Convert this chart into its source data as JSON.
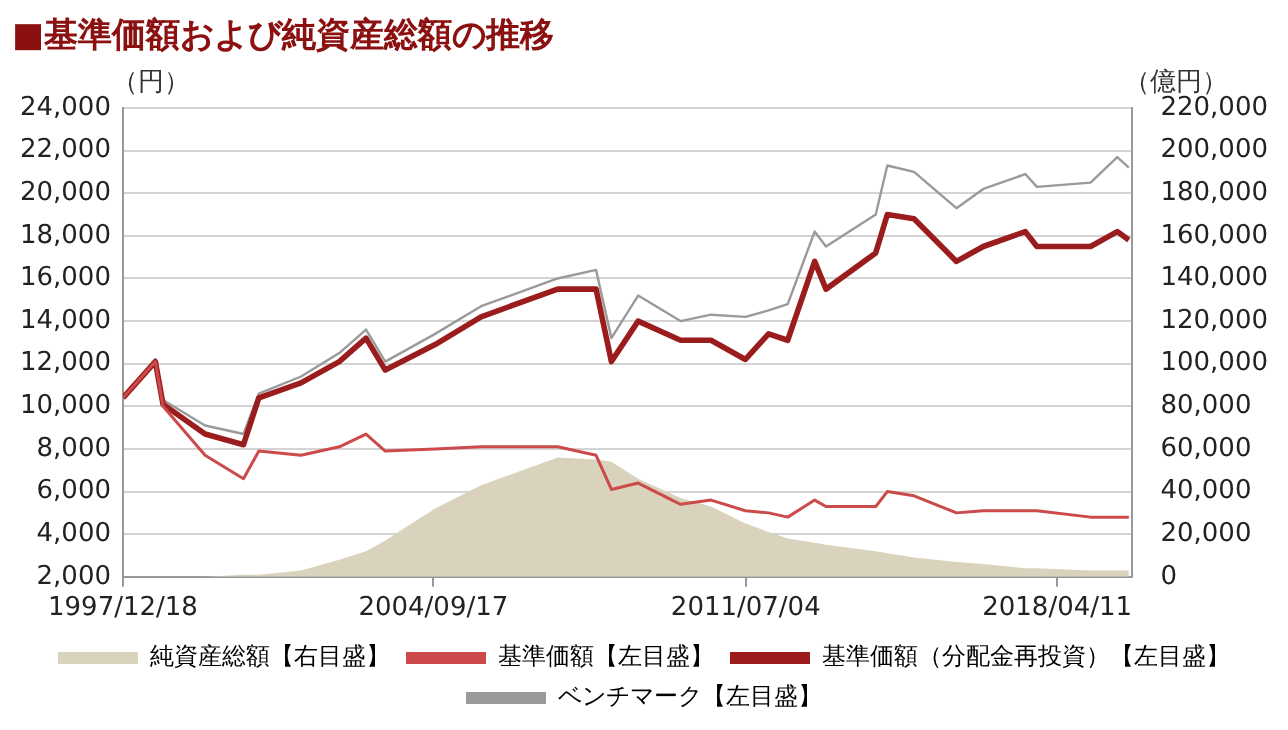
{
  "chart_data": {
    "type": "line",
    "title": "■基準価額および純資産総額の推移",
    "ylabel": "（円）",
    "y2label": "（億円）",
    "x": [
      "1997-12-18",
      "1998-09",
      "1998-11",
      "1999-10",
      "2000-08",
      "2000-12",
      "2001-11",
      "2002-09",
      "2003-04",
      "2003-09",
      "2004-10",
      "2005-10",
      "2007-06",
      "2008-04",
      "2008-08",
      "2009-03",
      "2010-02",
      "2010-10",
      "2011-07",
      "2012-01",
      "2012-06",
      "2013-01",
      "2013-04",
      "2014-05",
      "2014-08",
      "2015-03",
      "2016-02",
      "2016-09",
      "2017-08",
      "2017-11",
      "2019-01",
      "2019-08",
      "2019-11"
    ],
    "series": [
      {
        "name": "純資産総額【右目盛】",
        "type": "area",
        "axis": "y2",
        "color": "#d9d2bc",
        "values": [
          0,
          0,
          0,
          0,
          1000,
          1000,
          3000,
          8000,
          12000,
          17000,
          32000,
          43000,
          56000,
          55000,
          54000,
          46000,
          37000,
          33000,
          25000,
          21000,
          18000,
          16000,
          15000,
          12000,
          11000,
          9000,
          7000,
          6000,
          4000,
          4000,
          3000,
          3000,
          3000
        ]
      },
      {
        "name": "基準価額【左目盛】",
        "color": "#cc4a4a",
        "values": [
          10400,
          12100,
          10000,
          7700,
          6600,
          7900,
          7700,
          8100,
          8700,
          7900,
          8000,
          8100,
          8100,
          7700,
          6100,
          6400,
          5400,
          5600,
          5100,
          5000,
          4800,
          5600,
          5300,
          5300,
          6000,
          5800,
          5000,
          5100,
          5100,
          5100,
          4800,
          4800,
          4800
        ]
      },
      {
        "name": "基準価額（分配金再投資）【左目盛】",
        "color": "#9b1c1c",
        "values": [
          10400,
          12100,
          10100,
          8700,
          8200,
          10400,
          11100,
          12100,
          13200,
          11700,
          12900,
          14200,
          15500,
          15500,
          12100,
          14000,
          13100,
          13100,
          12200,
          13400,
          13100,
          16800,
          15500,
          17200,
          19000,
          18800,
          16800,
          17500,
          18200,
          17500,
          17500,
          18200,
          17800
        ]
      },
      {
        "name": "ベンチマーク【左目盛】",
        "color": "#9a9a9a",
        "values": [
          10400,
          12200,
          10300,
          9100,
          8700,
          10600,
          11400,
          12500,
          13600,
          12100,
          13400,
          14700,
          16000,
          16400,
          13200,
          15200,
          14000,
          14300,
          14200,
          14500,
          14800,
          18200,
          17500,
          19000,
          21300,
          21000,
          19300,
          20200,
          20900,
          20300,
          20500,
          21700,
          21200
        ]
      }
    ],
    "xlim": [
      "1997-12-18",
      "2019-11-30"
    ],
    "xticks": [
      {
        "value": "1997-12-18",
        "label": "1997/12/18"
      },
      {
        "value": "2004-09-17",
        "label": "2004/09/17"
      },
      {
        "value": "2011-07-04",
        "label": "2011/07/04"
      },
      {
        "value": "2018-04-11",
        "label": "2018/04/11"
      }
    ],
    "ylim": [
      2000,
      24000
    ],
    "yticks": [
      {
        "value": 2000,
        "label": "2,000"
      },
      {
        "value": 4000,
        "label": "4,000"
      },
      {
        "value": 6000,
        "label": "6,000"
      },
      {
        "value": 8000,
        "label": "8,000"
      },
      {
        "value": 10000,
        "label": "10,000"
      },
      {
        "value": 12000,
        "label": "12,000"
      },
      {
        "value": 14000,
        "label": "14,000"
      },
      {
        "value": 16000,
        "label": "16,000"
      },
      {
        "value": 18000,
        "label": "18,000"
      },
      {
        "value": 20000,
        "label": "20,000"
      },
      {
        "value": 22000,
        "label": "22,000"
      },
      {
        "value": 24000,
        "label": "24,000"
      }
    ],
    "y2lim": [
      0,
      220000
    ],
    "y2ticks": [
      0,
      {
        "value": 20000,
        "label": "20,000"
      },
      {
        "value": 40000,
        "label": "40,000"
      },
      {
        "value": 60000,
        "label": "60,000"
      },
      {
        "value": 80000,
        "label": "80,000"
      },
      {
        "value": 100000,
        "label": "100,000"
      },
      {
        "value": 120000,
        "label": "120,000"
      },
      {
        "value": 140000,
        "label": "140,000"
      },
      {
        "value": 160000,
        "label": "160,000"
      },
      {
        "value": 180000,
        "label": "180,000"
      },
      {
        "value": 200000,
        "label": "200,000"
      },
      {
        "value": 220000,
        "label": "220,000"
      }
    ],
    "grid": "y",
    "legend": "bottom"
  }
}
